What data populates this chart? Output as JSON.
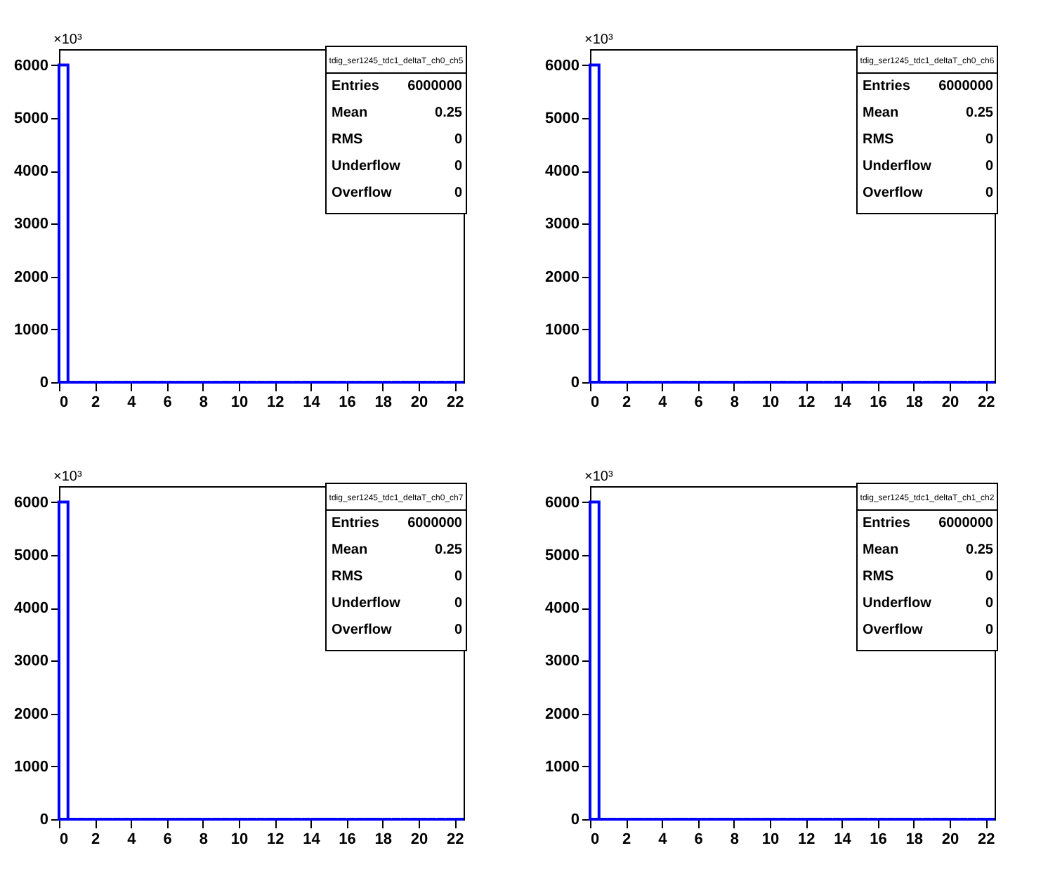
{
  "chart_data": [
    {
      "type": "histogram",
      "title": "tdig_ser1245_tdc1_deltaT_ch0_ch5",
      "bins": [
        0,
        0.5,
        1,
        1.5,
        2,
        2.5,
        3,
        3.5,
        4,
        4.5,
        5,
        5.5,
        6,
        6.5,
        7,
        7.5,
        8,
        8.5,
        9,
        9.5,
        10,
        10.5,
        11,
        11.5,
        12,
        12.5,
        13,
        13.5,
        14,
        14.5,
        15,
        15.5,
        16,
        16.5,
        17,
        17.5,
        18,
        18.5,
        19,
        19.5,
        20,
        20.5,
        21,
        21.5,
        22,
        22.5
      ],
      "values": [
        6000,
        0,
        0,
        0,
        0,
        0,
        0,
        0,
        0,
        0,
        0,
        0,
        0,
        0,
        0,
        0,
        0,
        0,
        0,
        0,
        0,
        0,
        0,
        0,
        0,
        0,
        0,
        0,
        0,
        0,
        0,
        0,
        0,
        0,
        0,
        0,
        0,
        0,
        0,
        0,
        0,
        0,
        0,
        0,
        0
      ],
      "color": "#0000ff",
      "xlim": [
        0,
        22.5
      ],
      "xticks": [
        0,
        2,
        4,
        6,
        8,
        10,
        12,
        14,
        16,
        18,
        20,
        22
      ],
      "ylim": [
        0,
        6300
      ],
      "yticks": [
        0,
        1000,
        2000,
        3000,
        4000,
        5000,
        6000
      ],
      "annotations": [
        "×10³",
        "Entries",
        "6000000",
        "Mean",
        "0.25",
        "RMS",
        "0",
        "Underflow",
        "0",
        "Overflow",
        "0"
      ]
    },
    {
      "type": "histogram",
      "title": "tdig_ser1245_tdc1_deltaT_ch0_ch6",
      "bins": [
        0,
        0.5,
        1,
        1.5,
        2,
        2.5,
        3,
        3.5,
        4,
        4.5,
        5,
        5.5,
        6,
        6.5,
        7,
        7.5,
        8,
        8.5,
        9,
        9.5,
        10,
        10.5,
        11,
        11.5,
        12,
        12.5,
        13,
        13.5,
        14,
        14.5,
        15,
        15.5,
        16,
        16.5,
        17,
        17.5,
        18,
        18.5,
        19,
        19.5,
        20,
        20.5,
        21,
        21.5,
        22,
        22.5
      ],
      "values": [
        6000,
        0,
        0,
        0,
        0,
        0,
        0,
        0,
        0,
        0,
        0,
        0,
        0,
        0,
        0,
        0,
        0,
        0,
        0,
        0,
        0,
        0,
        0,
        0,
        0,
        0,
        0,
        0,
        0,
        0,
        0,
        0,
        0,
        0,
        0,
        0,
        0,
        0,
        0,
        0,
        0,
        0,
        0,
        0,
        0
      ],
      "color": "#0000ff",
      "xlim": [
        0,
        22.5
      ],
      "xticks": [
        0,
        2,
        4,
        6,
        8,
        10,
        12,
        14,
        16,
        18,
        20,
        22
      ],
      "ylim": [
        0,
        6300
      ],
      "yticks": [
        0,
        1000,
        2000,
        3000,
        4000,
        5000,
        6000
      ],
      "annotations": [
        "×10³",
        "Entries",
        "6000000",
        "Mean",
        "0.25",
        "RMS",
        "0",
        "Underflow",
        "0",
        "Overflow",
        "0"
      ]
    },
    {
      "type": "histogram",
      "title": "tdig_ser1245_tdc1_deltaT_ch0_ch7",
      "bins": [
        0,
        0.5,
        1,
        1.5,
        2,
        2.5,
        3,
        3.5,
        4,
        4.5,
        5,
        5.5,
        6,
        6.5,
        7,
        7.5,
        8,
        8.5,
        9,
        9.5,
        10,
        10.5,
        11,
        11.5,
        12,
        12.5,
        13,
        13.5,
        14,
        14.5,
        15,
        15.5,
        16,
        16.5,
        17,
        17.5,
        18,
        18.5,
        19,
        19.5,
        20,
        20.5,
        21,
        21.5,
        22,
        22.5
      ],
      "values": [
        6000,
        0,
        0,
        0,
        0,
        0,
        0,
        0,
        0,
        0,
        0,
        0,
        0,
        0,
        0,
        0,
        0,
        0,
        0,
        0,
        0,
        0,
        0,
        0,
        0,
        0,
        0,
        0,
        0,
        0,
        0,
        0,
        0,
        0,
        0,
        0,
        0,
        0,
        0,
        0,
        0,
        0,
        0,
        0,
        0
      ],
      "color": "#0000ff",
      "xlim": [
        0,
        22.5
      ],
      "xticks": [
        0,
        2,
        4,
        6,
        8,
        10,
        12,
        14,
        16,
        18,
        20,
        22
      ],
      "ylim": [
        0,
        6300
      ],
      "yticks": [
        0,
        1000,
        2000,
        3000,
        4000,
        5000,
        6000
      ],
      "annotations": [
        "×10³",
        "Entries",
        "6000000",
        "Mean",
        "0.25",
        "RMS",
        "0",
        "Underflow",
        "0",
        "Overflow",
        "0"
      ]
    },
    {
      "type": "histogram",
      "title": "tdig_ser1245_tdc1_deltaT_ch1_ch2",
      "bins": [
        0,
        0.5,
        1,
        1.5,
        2,
        2.5,
        3,
        3.5,
        4,
        4.5,
        5,
        5.5,
        6,
        6.5,
        7,
        7.5,
        8,
        8.5,
        9,
        9.5,
        10,
        10.5,
        11,
        11.5,
        12,
        12.5,
        13,
        13.5,
        14,
        14.5,
        15,
        15.5,
        16,
        16.5,
        17,
        17.5,
        18,
        18.5,
        19,
        19.5,
        20,
        20.5,
        21,
        21.5,
        22,
        22.5
      ],
      "values": [
        6000,
        0,
        0,
        0,
        0,
        0,
        0,
        0,
        0,
        0,
        0,
        0,
        0,
        0,
        0,
        0,
        0,
        0,
        0,
        0,
        0,
        0,
        0,
        0,
        0,
        0,
        0,
        0,
        0,
        0,
        0,
        0,
        0,
        0,
        0,
        0,
        0,
        0,
        0,
        0,
        0,
        0,
        0,
        0,
        0
      ],
      "color": "#0000ff",
      "xlim": [
        0,
        22.5
      ],
      "xticks": [
        0,
        2,
        4,
        6,
        8,
        10,
        12,
        14,
        16,
        18,
        20,
        22
      ],
      "ylim": [
        0,
        6300
      ],
      "yticks": [
        0,
        1000,
        2000,
        3000,
        4000,
        5000,
        6000
      ],
      "annotations": [
        "×10³",
        "Entries",
        "6000000",
        "Mean",
        "0.25",
        "RMS",
        "0",
        "Underflow",
        "0",
        "Overflow",
        "0"
      ]
    }
  ]
}
